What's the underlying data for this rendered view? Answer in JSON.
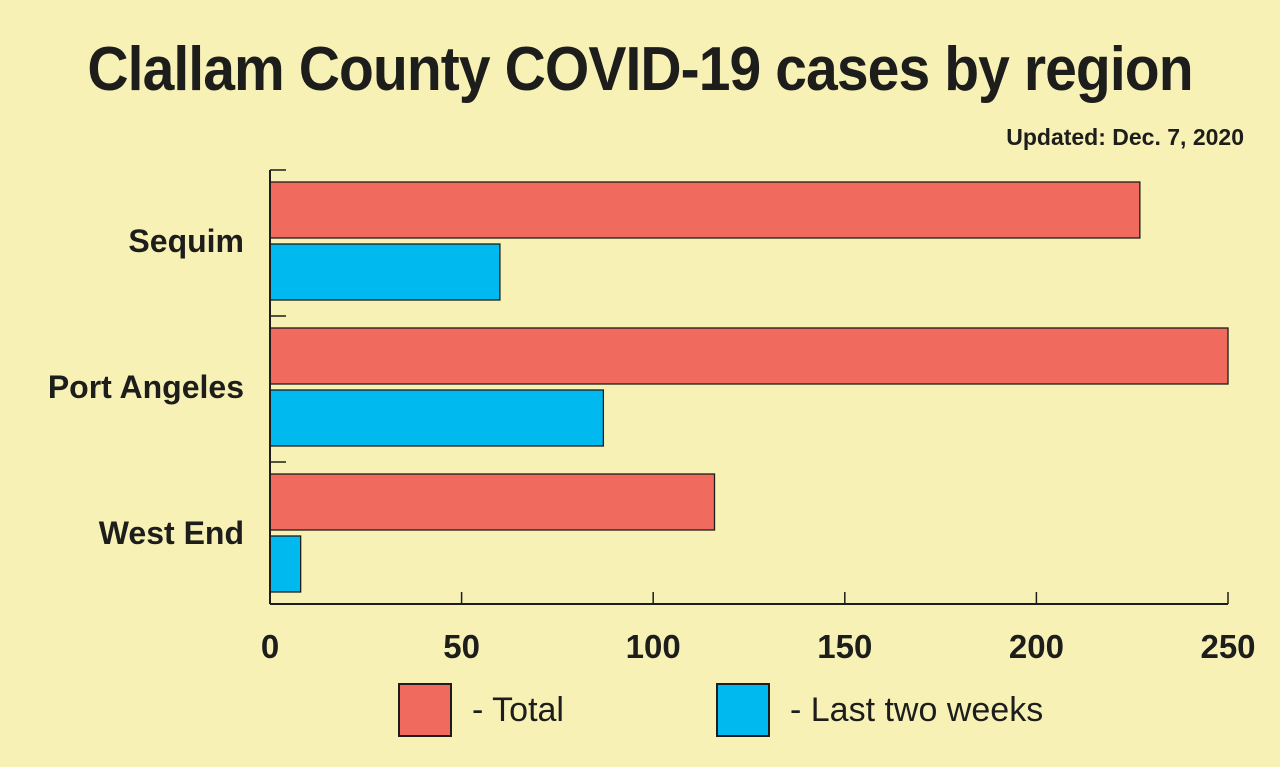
{
  "title": "Clallam County COVID-19 cases by region",
  "subtitle": "Updated: Dec. 7, 2020",
  "colors": {
    "background": "#f7f1b6",
    "total": "#f16a5e",
    "recent": "#00b9ef",
    "ink": "#1d1d1b"
  },
  "legend": {
    "total": "- Total",
    "recent": "- Last two weeks"
  },
  "chart_data": {
    "type": "bar",
    "orientation": "horizontal",
    "categories": [
      "Sequim",
      "Port Angeles",
      "West End"
    ],
    "series": [
      {
        "name": "- Total",
        "values": [
          227,
          250,
          116
        ]
      },
      {
        "name": "- Last two weeks",
        "values": [
          60,
          87,
          8
        ]
      }
    ],
    "xlim": [
      0,
      250
    ],
    "xticks": [
      "0",
      "50",
      "100",
      "150",
      "200",
      "250"
    ],
    "grid": false,
    "legend_position": "bottom"
  }
}
